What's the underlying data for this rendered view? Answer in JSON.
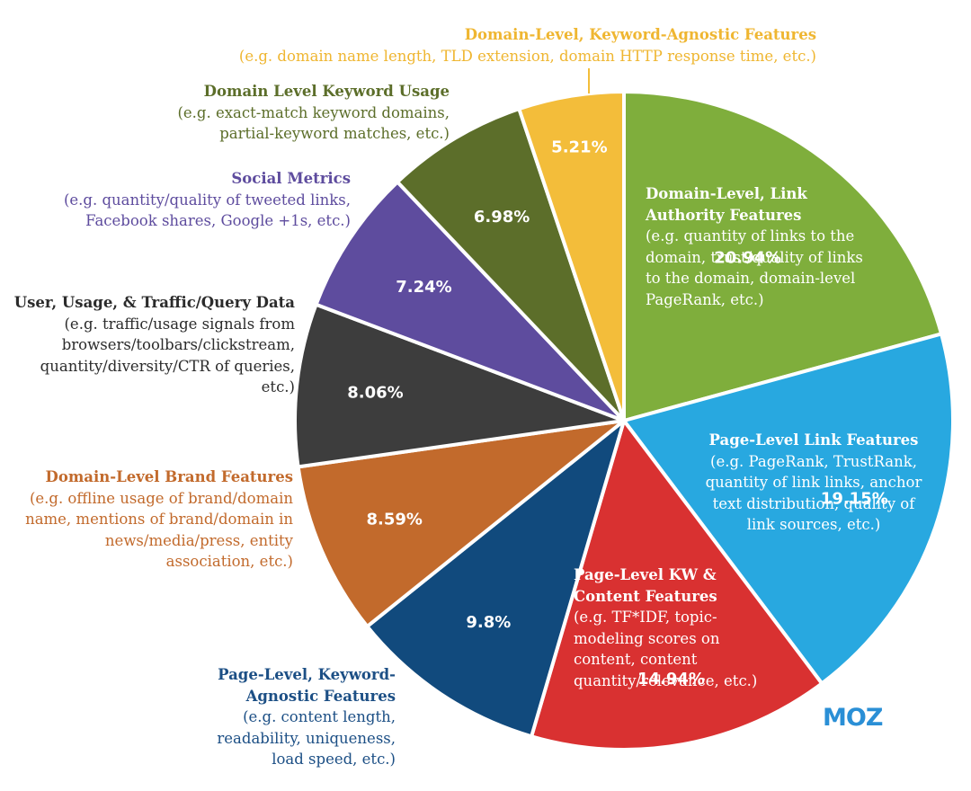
{
  "chart_data": {
    "type": "pie",
    "slices": [
      {
        "label": "Domain-Level, Link Authority Features",
        "description": "(e.g. quantity of links to the domain, trust/quality of links to the domain, domain-level PageRank, etc.)",
        "value": 20.94,
        "value_label": "20.94%",
        "color": "#7fae3c"
      },
      {
        "label": "Page-Level Link Features",
        "description": "(e.g. PageRank, TrustRank, quantity of link links, anchor text distribution, quality of link sources, etc.)",
        "value": 19.15,
        "value_label": "19.15%",
        "color": "#28a8e0"
      },
      {
        "label": "Page-Level KW & Content Features",
        "description": "(e.g. TF*IDF, topic-modeling scores on content, content quantity/relevance, etc.)",
        "value": 14.94,
        "value_label": "14.94%",
        "color": "#d93131"
      },
      {
        "label": "Page-Level, Keyword-Agnostic Features",
        "description": "(e.g. content length, readability, uniqueness, load speed, etc.)",
        "value": 9.8,
        "value_label": "9.8%",
        "color": "#114a7d"
      },
      {
        "label": "Domain-Level Brand Features",
        "description": "(e.g. offline usage of brand/domain name, mentions of brand/domain in news/media/press, entity association, etc.)",
        "value": 8.59,
        "value_label": "8.59%",
        "color": "#c26a2c"
      },
      {
        "label": "User, Usage, & Traffic/Query Data",
        "description": "(e.g. traffic/usage signals from browsers/toolbars/clickstream, quantity/diversity/CTR of queries, etc.)",
        "value": 8.06,
        "value_label": "8.06%",
        "color": "#3d3d3d"
      },
      {
        "label": "Social Metrics",
        "description": "(e.g. quantity/quality of tweeted links, Facebook shares, Google +1s, etc.)",
        "value": 7.24,
        "value_label": "7.24%",
        "color": "#5e4c9e"
      },
      {
        "label": "Domain Level Keyword Usage",
        "description": "(e.g. exact-match keyword domains, partial-keyword matches, etc.)",
        "value": 6.98,
        "value_label": "6.98%",
        "color": "#5c6e2a"
      },
      {
        "label": "Domain-Level, Keyword-Agnostic Features",
        "description": "(e.g. domain name length, TLD extension, domain HTTP response time, etc.)",
        "value": 5.21,
        "value_label": "5.21%",
        "color": "#f3bd3a"
      }
    ],
    "label_colors": {
      "domain_link_authority": "#ffffff",
      "page_link": "#ffffff",
      "page_kw_content": "#ffffff",
      "page_keyword_agnostic": "#1c4f85",
      "brand": "#c26a2c",
      "user_traffic": "#2b2b2b",
      "social": "#5e4c9e",
      "domain_keyword": "#5c6e2a",
      "domain_keyword_agnostic": "#efb631"
    }
  },
  "brand": {
    "logo": "MOZ",
    "color": "#2a8fd6"
  }
}
